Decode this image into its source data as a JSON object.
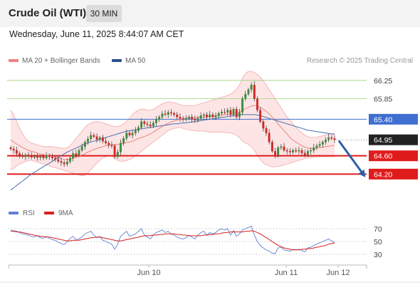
{
  "header": {
    "title": "Crude Oil (WTI)",
    "timeframe": "30 MIN",
    "datetime": "Wednesday, June 11, 2025 8:44:07 AM CET"
  },
  "legend": {
    "items": [
      {
        "label": "MA 20 + Bollinger Bands",
        "color": "#f08080"
      },
      {
        "label": "MA 50",
        "color": "#2b4f8e"
      }
    ],
    "credit": "Research © 2025 Trading Central"
  },
  "colors": {
    "up": "#3a8d3a",
    "down": "#d02828",
    "ma20": "#e8847c",
    "ma50": "#4a6fae",
    "band_fill": "#fde0e0",
    "support": "#e01b1b",
    "pivot": "#3f6fd0",
    "resistance": "#9ad07a",
    "arrow": "#2b5ea7",
    "rsi": "#5f80d0",
    "rsi_ma": "#d82020"
  },
  "chart_data": [
    {
      "type": "candlestick",
      "title": "",
      "ylim": [
        63.8,
        66.45
      ],
      "x_labels": [
        "Jun 10",
        "Jun 11",
        "Jun 12"
      ],
      "price_levels": [
        {
          "value": 66.25,
          "label": "66.25",
          "kind": "resistance"
        },
        {
          "value": 65.85,
          "label": "65.85",
          "kind": "resistance"
        },
        {
          "value": 65.4,
          "label": "65.40",
          "kind": "pivot"
        },
        {
          "value": 64.95,
          "label": "64.95",
          "kind": "last"
        },
        {
          "value": 64.6,
          "label": "64.60",
          "kind": "support"
        },
        {
          "value": 64.2,
          "label": "64.20",
          "kind": "support"
        }
      ],
      "forecast_arrow": {
        "from": 64.93,
        "to": 64.18
      },
      "close": [
        64.75,
        64.72,
        64.65,
        64.6,
        64.58,
        64.62,
        64.6,
        64.57,
        64.58,
        64.56,
        64.58,
        64.55,
        64.6,
        64.58,
        64.55,
        64.52,
        64.48,
        64.45,
        64.42,
        64.47,
        64.55,
        64.65,
        64.62,
        64.72,
        64.8,
        64.9,
        64.97,
        65.05,
        65.02,
        64.96,
        65.0,
        64.92,
        64.88,
        64.84,
        64.82,
        64.58,
        64.68,
        64.88,
        64.98,
        65.1,
        65.05,
        65.1,
        65.15,
        65.22,
        65.35,
        65.3,
        65.28,
        65.25,
        65.32,
        65.4,
        65.45,
        65.52,
        65.5,
        65.55,
        65.53,
        65.5,
        65.45,
        65.42,
        65.4,
        65.42,
        65.45,
        65.4,
        65.38,
        65.42,
        65.48,
        65.5,
        65.45,
        65.5,
        65.45,
        65.48,
        65.53,
        65.56,
        65.55,
        65.6,
        65.5,
        65.62,
        65.45,
        65.55,
        65.85,
        65.95,
        66.05,
        66.15,
        65.85,
        65.6,
        65.35,
        65.2,
        65.1,
        64.9,
        64.7,
        64.62,
        64.78,
        64.8,
        64.72,
        64.7,
        64.68,
        64.72,
        64.7,
        64.72,
        64.66,
        64.62,
        64.7,
        64.72,
        64.78,
        64.82,
        64.85,
        64.9,
        64.95,
        65.0,
        64.98,
        64.95
      ],
      "ma20": [
        64.95,
        64.9,
        64.86,
        64.82,
        64.78,
        64.75,
        64.72,
        64.7,
        64.68,
        64.66,
        64.64,
        64.62,
        64.61,
        64.6,
        64.59,
        64.58,
        64.56,
        64.54,
        64.52,
        64.52,
        64.53,
        64.55,
        64.57,
        64.59,
        64.62,
        64.65,
        64.68,
        64.71,
        64.74,
        64.76,
        64.78,
        64.8,
        64.82,
        64.83,
        64.84,
        64.84,
        64.85,
        64.86,
        64.87,
        64.89,
        64.9,
        64.92,
        64.95,
        64.98,
        65.0,
        65.02,
        65.05,
        65.08,
        65.12,
        65.16,
        65.2,
        65.24,
        65.28,
        65.31,
        65.34,
        65.36,
        65.38,
        65.4,
        65.41,
        65.42,
        65.43,
        65.43,
        65.43,
        65.44,
        65.44,
        65.45,
        65.45,
        65.46,
        65.46,
        65.47,
        65.48,
        65.49,
        65.5,
        65.51,
        65.52,
        65.53,
        65.54,
        65.56,
        65.6,
        65.63,
        65.66,
        65.69,
        65.7,
        65.69,
        65.66,
        65.62,
        65.57,
        65.52,
        65.45,
        65.38,
        65.3,
        65.22,
        65.15,
        65.08,
        65.0,
        64.94,
        64.9,
        64.86,
        64.82,
        64.79,
        64.77,
        64.76,
        64.76,
        64.77,
        64.78,
        64.79,
        64.8,
        64.81,
        64.82,
        64.83
      ],
      "upper_band": [
        65.6,
        65.5,
        65.35,
        65.2,
        65.08,
        64.98,
        64.92,
        64.88,
        64.86,
        64.84,
        64.82,
        64.8,
        64.8,
        64.8,
        64.8,
        64.79,
        64.78,
        64.77,
        64.76,
        64.78,
        64.82,
        64.9,
        64.98,
        65.06,
        65.14,
        65.22,
        65.28,
        65.32,
        65.34,
        65.35,
        65.34,
        65.32,
        65.3,
        65.28,
        65.26,
        65.24,
        65.24,
        65.26,
        65.3,
        65.36,
        65.42,
        65.5,
        65.56,
        65.6,
        65.62,
        65.62,
        65.6,
        65.6,
        65.62,
        65.66,
        65.7,
        65.74,
        65.76,
        65.78,
        65.78,
        65.76,
        65.74,
        65.72,
        65.7,
        65.7,
        65.7,
        65.7,
        65.7,
        65.72,
        65.74,
        65.76,
        65.78,
        65.8,
        65.82,
        65.84,
        65.86,
        65.88,
        65.9,
        65.92,
        65.95,
        66.0,
        66.06,
        66.15,
        66.3,
        66.4,
        66.45,
        66.45,
        66.42,
        66.38,
        66.32,
        66.24,
        66.15,
        66.05,
        65.95,
        65.85,
        65.75,
        65.65,
        65.55,
        65.45,
        65.38,
        65.3,
        65.22,
        65.16,
        65.1,
        65.05,
        65.02,
        65.0,
        65.0,
        65.01,
        65.02,
        65.04,
        65.06,
        65.07,
        65.08,
        65.1
      ],
      "lower_band": [
        64.3,
        64.32,
        64.38,
        64.42,
        64.45,
        64.48,
        64.5,
        64.5,
        64.48,
        64.46,
        64.44,
        64.42,
        64.4,
        64.38,
        64.36,
        64.34,
        64.32,
        64.3,
        64.28,
        64.26,
        64.24,
        64.22,
        64.2,
        64.18,
        64.16,
        64.18,
        64.22,
        64.3,
        64.38,
        64.44,
        64.5,
        64.55,
        64.58,
        64.6,
        64.6,
        64.55,
        64.5,
        64.48,
        64.48,
        64.5,
        64.52,
        64.55,
        64.6,
        64.65,
        64.7,
        64.75,
        64.8,
        64.85,
        64.9,
        64.95,
        65.0,
        65.05,
        65.1,
        65.15,
        65.18,
        65.2,
        65.21,
        65.22,
        65.2,
        65.18,
        65.17,
        65.16,
        65.15,
        65.14,
        65.14,
        65.14,
        65.13,
        65.12,
        65.12,
        65.12,
        65.12,
        65.12,
        65.11,
        65.1,
        65.1,
        65.08,
        65.05,
        65.0,
        64.92,
        64.88,
        64.85,
        64.8,
        64.72,
        64.62,
        64.52,
        64.45,
        64.4,
        64.38,
        64.36,
        64.36,
        64.37,
        64.38,
        64.4,
        64.42,
        64.44,
        64.46,
        64.48,
        64.5,
        64.52,
        64.54,
        64.55,
        64.56,
        64.57,
        64.58,
        64.58,
        64.58,
        64.58,
        64.58,
        64.58,
        64.58
      ],
      "ma50": [
        63.85,
        63.9,
        63.95,
        64.0,
        64.05,
        64.1,
        64.15,
        64.2,
        64.24,
        64.28,
        64.32,
        64.36,
        64.4,
        64.44,
        64.48,
        64.52,
        64.56,
        64.6,
        64.64,
        64.68,
        64.71,
        64.74,
        64.77,
        64.8,
        64.83,
        64.86,
        64.88,
        64.9,
        64.92,
        64.94,
        64.96,
        64.98,
        65.0,
        65.02,
        65.04,
        65.06,
        65.08,
        65.1,
        65.12,
        65.14,
        65.15,
        65.16,
        65.17,
        65.18,
        65.19,
        65.2,
        65.21,
        65.22,
        65.23,
        65.24,
        65.25,
        65.26,
        65.27,
        65.28,
        65.29,
        65.3,
        65.3,
        65.31,
        65.32,
        65.32,
        65.33,
        65.34,
        65.35,
        65.36,
        65.37,
        65.38,
        65.39,
        65.4,
        65.41,
        65.42,
        65.43,
        65.44,
        65.45,
        65.46,
        65.47,
        65.48,
        65.49,
        65.5,
        65.5,
        65.5,
        65.5,
        65.5,
        65.5,
        65.49,
        65.48,
        65.46,
        65.44,
        65.42,
        65.4,
        65.38,
        65.36,
        65.34,
        65.32,
        65.3,
        65.28,
        65.26,
        65.24,
        65.22,
        65.2,
        65.18,
        65.16,
        65.15,
        65.14,
        65.13,
        65.12,
        65.11,
        65.1,
        65.09,
        65.08,
        65.07
      ]
    },
    {
      "type": "line",
      "title": "",
      "series": [
        {
          "name": "RSI"
        },
        {
          "name": "9MA"
        }
      ],
      "ylim": [
        20,
        80
      ],
      "y_ticks": [
        70,
        50,
        30
      ],
      "rsi": [
        68,
        67,
        66,
        64,
        62,
        61,
        60,
        58,
        57,
        59,
        56,
        55,
        58,
        55,
        53,
        52,
        49,
        47,
        45,
        50,
        55,
        58,
        53,
        54,
        57,
        62,
        64,
        66,
        60,
        56,
        58,
        52,
        50,
        48,
        46,
        38,
        46,
        58,
        62,
        66,
        58,
        60,
        62,
        66,
        70,
        60,
        57,
        54,
        60,
        64,
        66,
        68,
        64,
        66,
        62,
        60,
        57,
        55,
        54,
        56,
        60,
        57,
        54,
        60,
        64,
        66,
        60,
        64,
        62,
        64,
        68,
        70,
        68,
        70,
        60,
        67,
        58,
        62,
        68,
        70,
        72,
        74,
        60,
        50,
        44,
        40,
        37,
        35,
        32,
        31,
        40,
        41,
        37,
        36,
        35,
        38,
        37,
        38,
        36,
        34,
        40,
        41,
        44,
        46,
        48,
        50,
        52,
        54,
        51,
        48
      ],
      "rsi_ma": [
        66,
        66,
        65,
        65,
        64,
        63,
        62,
        61,
        60,
        59,
        58,
        58,
        57,
        57,
        56,
        55,
        54,
        53,
        52,
        51,
        51,
        52,
        52,
        52,
        53,
        54,
        55,
        56,
        56,
        57,
        57,
        56,
        55,
        54,
        53,
        52,
        51,
        51,
        52,
        53,
        54,
        55,
        56,
        57,
        58,
        59,
        59,
        59,
        60,
        60,
        61,
        61,
        62,
        62,
        62,
        62,
        61,
        61,
        60,
        60,
        59,
        59,
        59,
        59,
        59,
        60,
        60,
        61,
        61,
        62,
        62,
        63,
        64,
        64,
        65,
        65,
        65,
        65,
        65,
        66,
        66,
        67,
        66,
        64,
        62,
        59,
        56,
        53,
        50,
        47,
        44,
        42,
        40,
        39,
        38,
        37,
        37,
        37,
        38,
        38,
        39,
        39,
        40,
        41,
        42,
        43,
        44,
        46,
        47,
        48
      ]
    }
  ]
}
